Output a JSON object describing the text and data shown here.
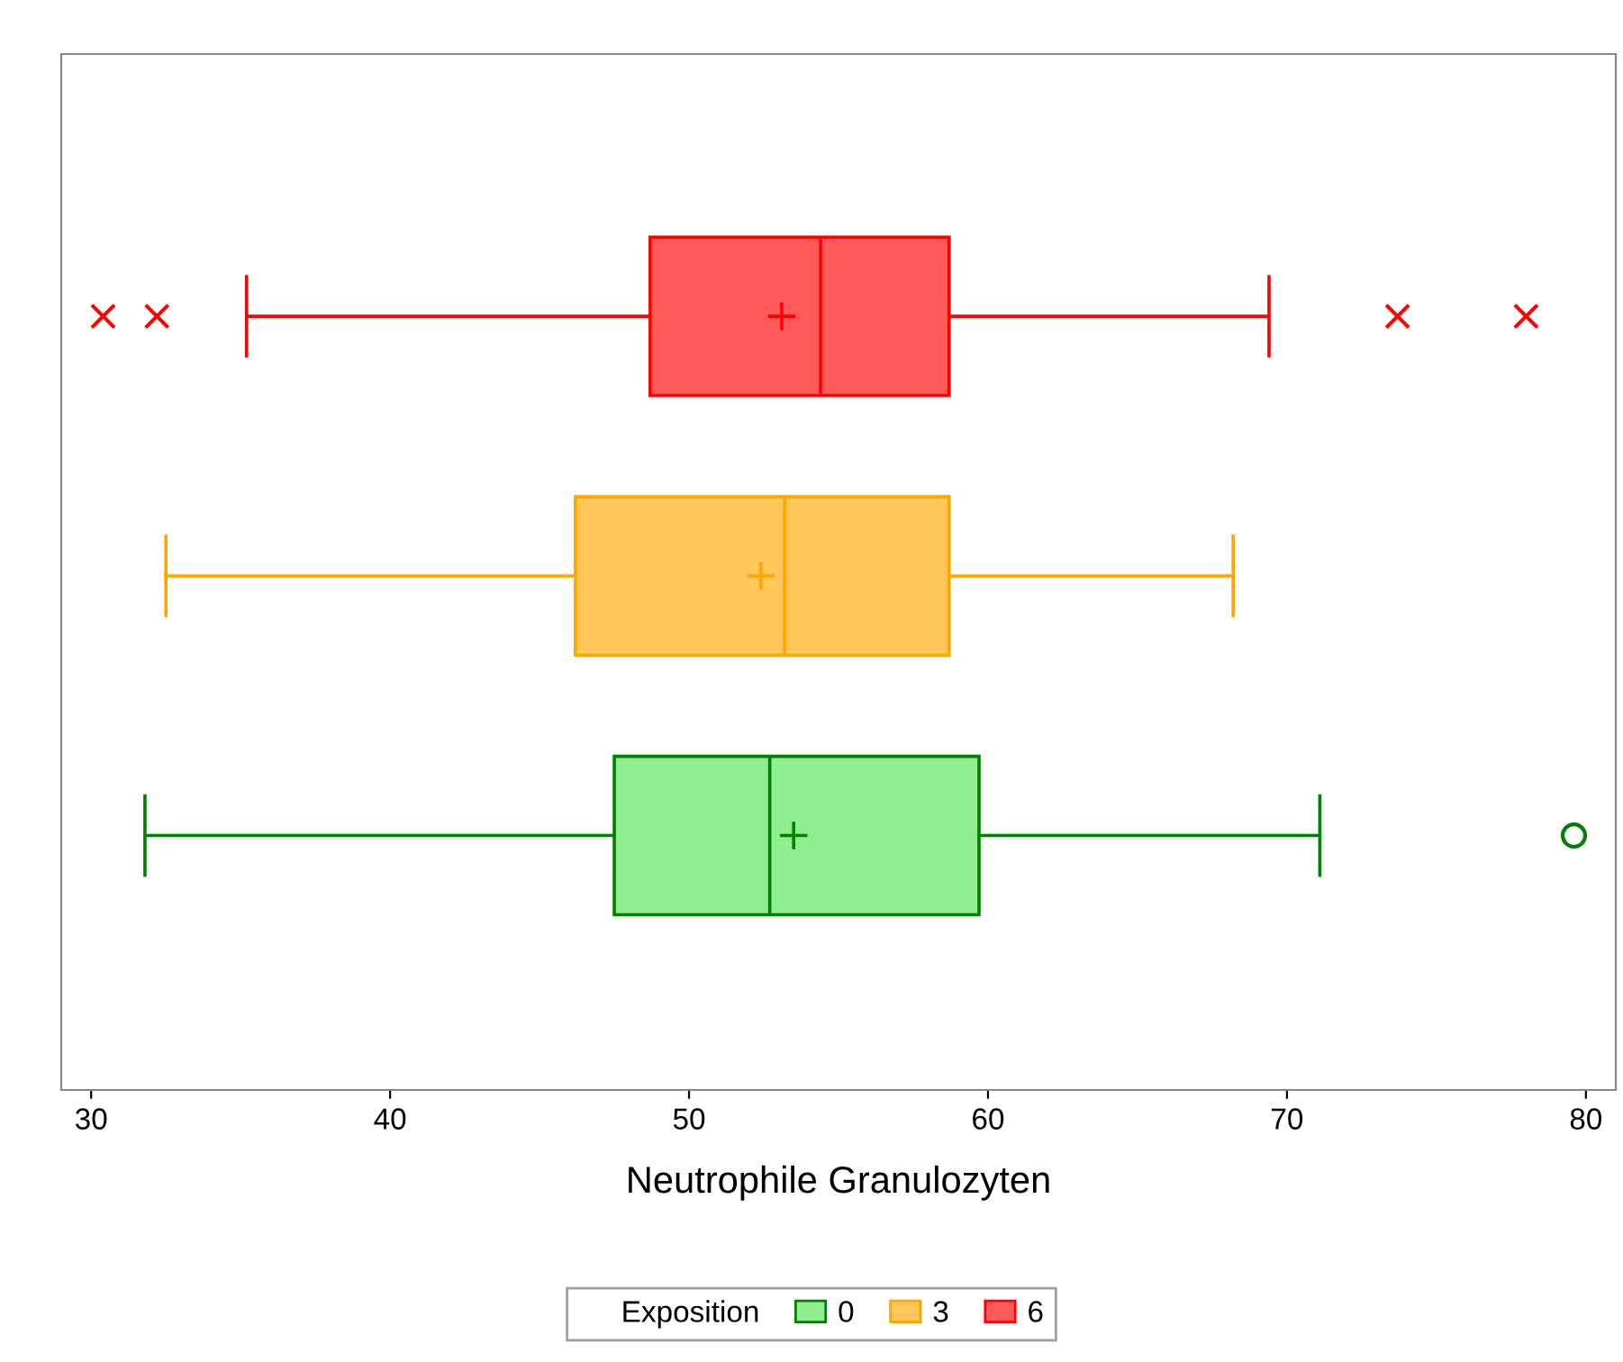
{
  "chart_data": {
    "type": "box",
    "orientation": "horizontal",
    "xlabel": "Neutrophile Granulozyten",
    "legend_title": "Exposition",
    "legend": "bottom",
    "grid": false,
    "categories": [
      null,
      null,
      null
    ],
    "xlim": [
      29,
      81
    ],
    "xticks": [
      30,
      40,
      50,
      60,
      70,
      80
    ],
    "series": [
      {
        "name": "0",
        "color": "#008000",
        "colors": [
          null,
          null,
          "#90ee90"
        ],
        "marker": "circle",
        "boxes": [
          null,
          null,
          {
            "low": 31.8,
            "q1": 47.5,
            "median": 52.7,
            "q3": 59.7,
            "high": 71.1,
            "mean": 53.5,
            "outliers": [
              79.6
            ]
          }
        ]
      },
      {
        "name": "3",
        "color": "#ffa500",
        "colors": [
          null,
          "#ffc65a",
          null
        ],
        "boxes": [
          null,
          {
            "low": 32.5,
            "q1": 46.2,
            "median": 53.2,
            "q3": 58.7,
            "high": 68.2,
            "mean": 52.4
          },
          null
        ]
      },
      {
        "name": "6",
        "color": "#ff0000",
        "colors": [
          "#ff5a5a",
          null,
          null
        ],
        "marker": "cross",
        "boxes": [
          {
            "low": 35.2,
            "q1": 48.7,
            "median": 54.4,
            "q3": 58.7,
            "high": 69.4,
            "mean": 53.1,
            "outliers": [
              30.4,
              32.2,
              73.7,
              78.0
            ]
          },
          null,
          null
        ]
      }
    ]
  }
}
